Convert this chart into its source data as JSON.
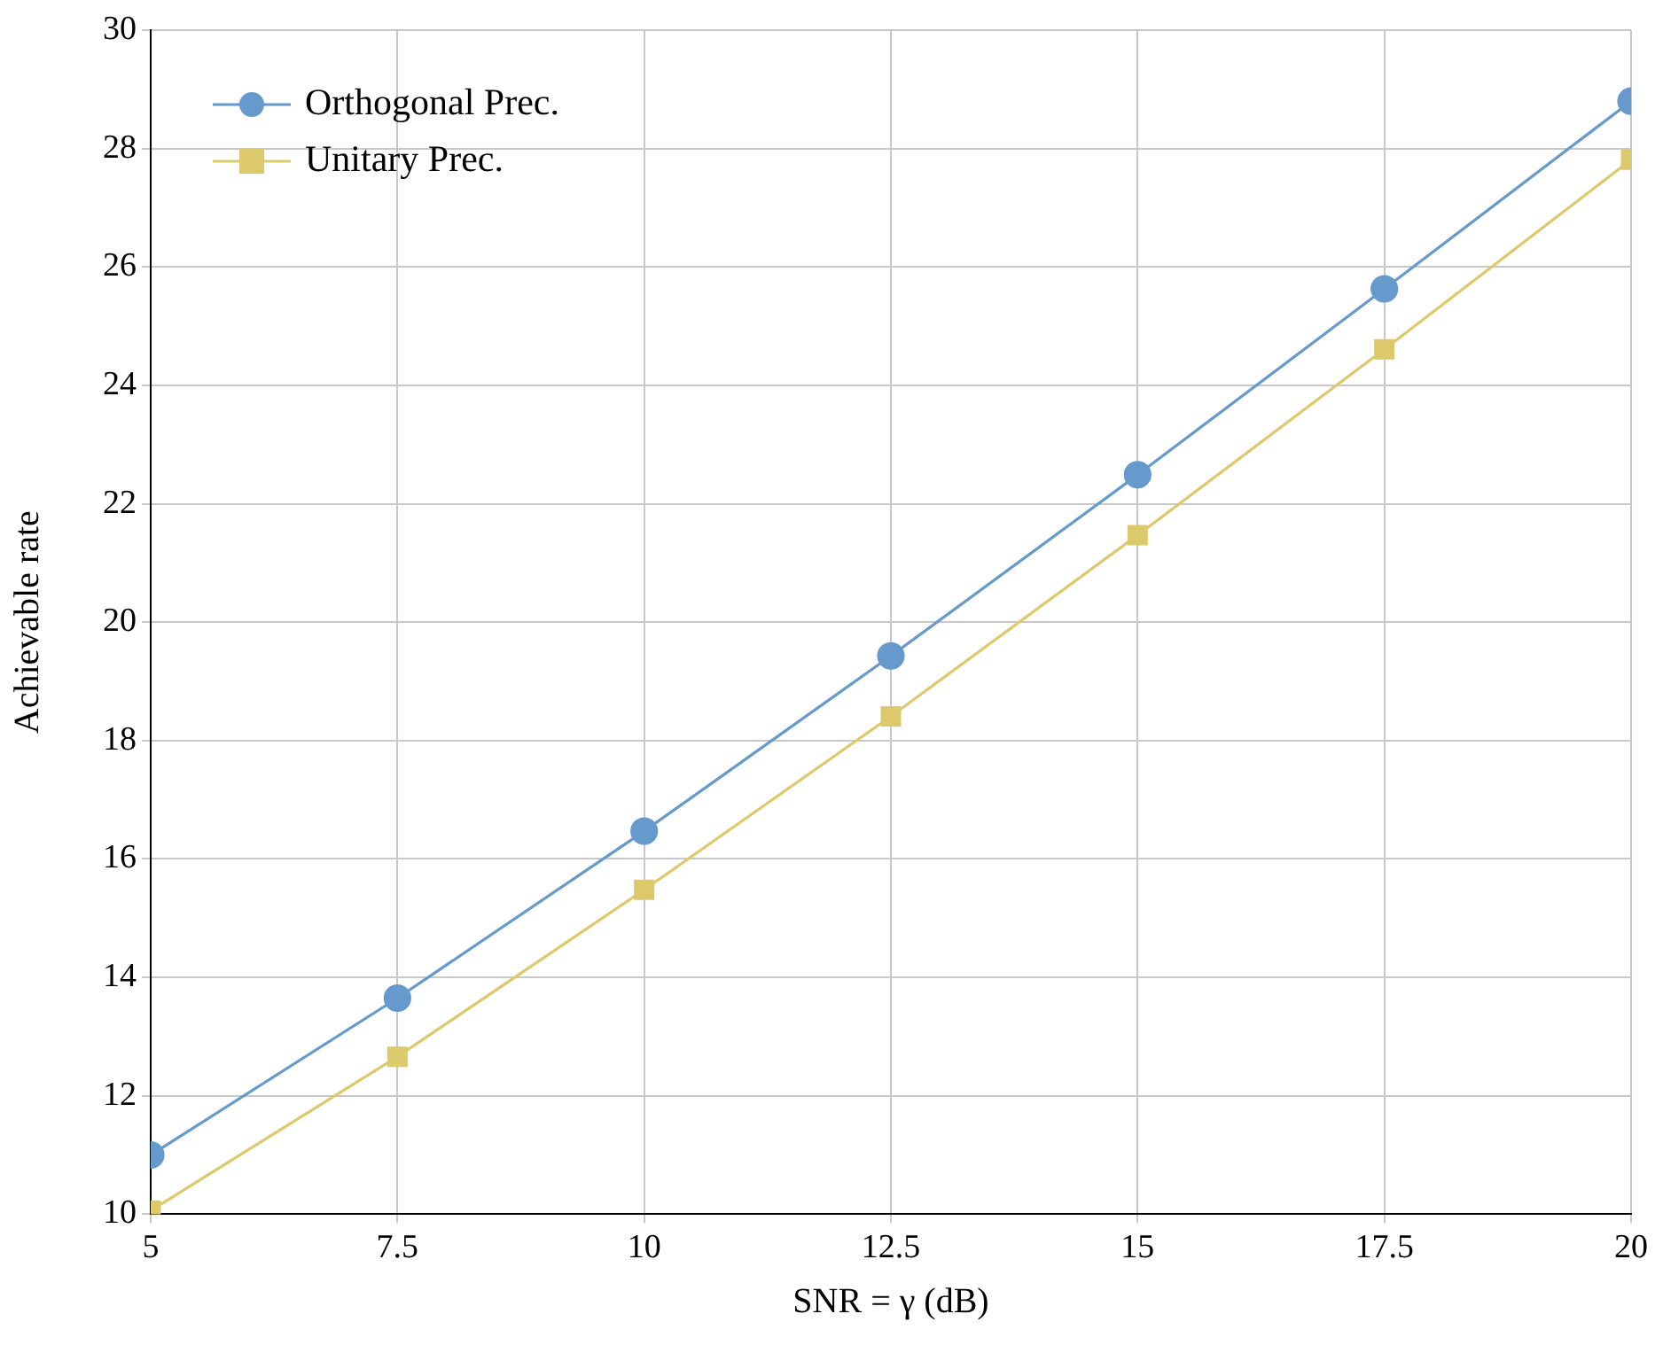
{
  "chart_data": {
    "type": "line",
    "xlabel": "SNR = γ (dB)",
    "ylabel": "Achievable rate",
    "x": [
      5,
      7.5,
      10,
      12.5,
      15,
      17.5,
      20
    ],
    "series": [
      {
        "name": "Orthogonal Prec.",
        "color": "#6699cc",
        "marker": "circle",
        "values": [
          11.0,
          13.65,
          16.47,
          19.43,
          22.49,
          25.63,
          28.8
        ]
      },
      {
        "name": "Unitary Prec.",
        "color": "#dcc96b",
        "marker": "square",
        "values": [
          10.06,
          12.66,
          15.48,
          18.41,
          21.47,
          24.61,
          27.81
        ]
      }
    ],
    "xlim": [
      5,
      20
    ],
    "xticks": [
      5,
      7.5,
      10,
      12.5,
      15,
      17.5,
      20
    ],
    "ylim": [
      10,
      30
    ],
    "yticks": [
      10,
      12,
      14,
      16,
      18,
      20,
      22,
      24,
      26,
      28,
      30
    ],
    "grid": true,
    "legend": "top left",
    "line_style": "solid"
  }
}
